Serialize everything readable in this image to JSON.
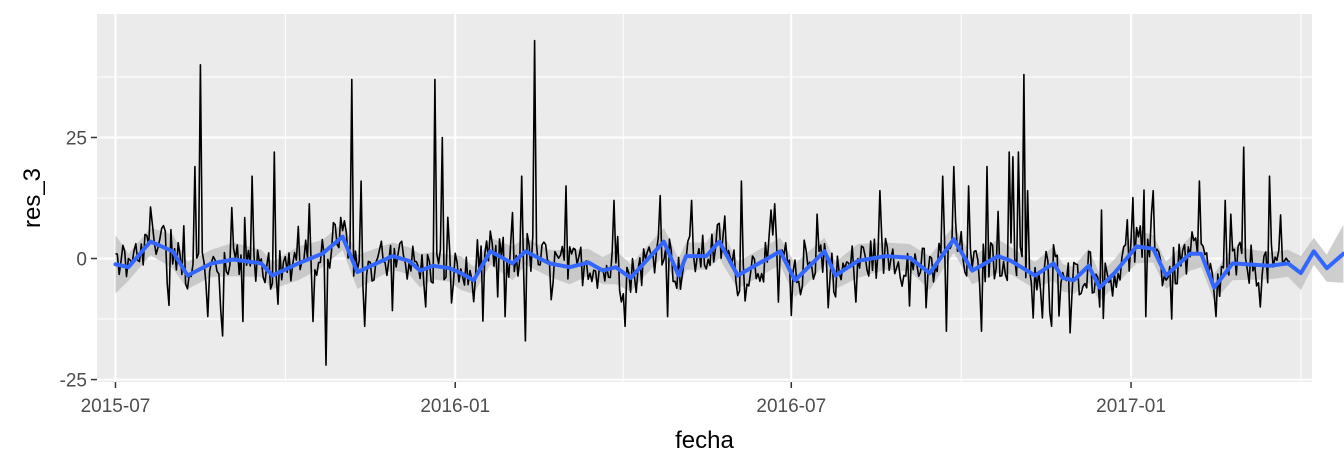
{
  "chart_data": {
    "type": "line",
    "xlabel": "fecha",
    "ylabel": "res_3",
    "x_range": [
      "2015-06-21",
      "2017-04-09"
    ],
    "ylim": [
      -25.5,
      50.5
    ],
    "x_ticks": [
      {
        "date": "2015-07-01",
        "label": "2015-07"
      },
      {
        "date": "2016-01-01",
        "label": "2016-01"
      },
      {
        "date": "2016-07-01",
        "label": "2016-07"
      },
      {
        "date": "2017-01-01",
        "label": "2017-01"
      }
    ],
    "y_ticks": [
      {
        "value": -25,
        "label": "-25"
      },
      {
        "value": 0,
        "label": "0"
      },
      {
        "value": 25,
        "label": "25"
      }
    ],
    "grid": true,
    "background_color": "#ebebeb",
    "residual_color": "#000000",
    "smooth_color": "#3366ff",
    "ribbon_color": "#bdbdbd",
    "series": [
      {
        "type": "line",
        "x_start": "2015-07-01",
        "x_end": "2017-03-28",
        "spikes": [
          {
            "date": "2015-08-16",
            "value": 40
          },
          {
            "date": "2015-08-13",
            "value": 19
          },
          {
            "date": "2015-08-20",
            "value": -12
          },
          {
            "date": "2015-08-28",
            "value": -16
          },
          {
            "date": "2015-09-13",
            "value": 17
          },
          {
            "date": "2015-09-25",
            "value": 22
          },
          {
            "date": "2015-09-08",
            "value": -13
          },
          {
            "date": "2015-10-23",
            "value": -22
          },
          {
            "date": "2015-10-16",
            "value": -13
          },
          {
            "date": "2015-11-06",
            "value": 37
          },
          {
            "date": "2015-11-11",
            "value": 16
          },
          {
            "date": "2015-11-13",
            "value": -14
          },
          {
            "date": "2015-12-21",
            "value": 37
          },
          {
            "date": "2015-12-25",
            "value": 25
          },
          {
            "date": "2015-12-16",
            "value": -10
          },
          {
            "date": "2016-02-13",
            "value": 45
          },
          {
            "date": "2016-02-08",
            "value": -17
          },
          {
            "date": "2016-02-06",
            "value": 17
          },
          {
            "date": "2016-01-28",
            "value": -12
          },
          {
            "date": "2016-03-01",
            "value": 15
          },
          {
            "date": "2016-03-27",
            "value": 12
          },
          {
            "date": "2016-04-02",
            "value": -14
          },
          {
            "date": "2016-04-21",
            "value": 13
          },
          {
            "date": "2016-04-25",
            "value": -12
          },
          {
            "date": "2016-05-08",
            "value": 12
          },
          {
            "date": "2016-06-04",
            "value": 16
          },
          {
            "date": "2016-06-20",
            "value": 10
          },
          {
            "date": "2016-06-24",
            "value": -9
          },
          {
            "date": "2016-08-18",
            "value": 14
          },
          {
            "date": "2016-09-21",
            "value": 17
          },
          {
            "date": "2016-09-27",
            "value": 19
          },
          {
            "date": "2016-09-23",
            "value": -15
          },
          {
            "date": "2016-10-05",
            "value": 15
          },
          {
            "date": "2016-10-15",
            "value": 19
          },
          {
            "date": "2016-10-12",
            "value": -15
          },
          {
            "date": "2016-10-27",
            "value": 22
          },
          {
            "date": "2016-10-29",
            "value": 21
          },
          {
            "date": "2016-11-01",
            "value": 22
          },
          {
            "date": "2016-11-04",
            "value": 38
          },
          {
            "date": "2016-11-06",
            "value": 14
          },
          {
            "date": "2016-11-19",
            "value": -14
          },
          {
            "date": "2016-12-16",
            "value": 10
          },
          {
            "date": "2017-01-13",
            "value": 14
          },
          {
            "date": "2017-01-09",
            "value": -12
          },
          {
            "date": "2017-02-07",
            "value": 16
          },
          {
            "date": "2017-02-16",
            "value": -12
          },
          {
            "date": "2017-02-21",
            "value": 12
          },
          {
            "date": "2017-03-03",
            "value": 23
          },
          {
            "date": "2017-03-17",
            "value": 17
          },
          {
            "date": "2017-03-12",
            "value": -10
          }
        ]
      },
      {
        "type": "smooth",
        "ribbon": [
          [
            -7,
            5
          ],
          [
            -3,
            8
          ],
          [
            -2,
            10
          ]
        ],
        "points": [
          {
            "date": "2015-07-01",
            "value": -1.2
          },
          {
            "date": "2015-07-08",
            "value": -1.8
          },
          {
            "date": "2015-07-20",
            "value": 3.5
          },
          {
            "date": "2015-08-01",
            "value": 1.5
          },
          {
            "date": "2015-08-09",
            "value": -3.5
          },
          {
            "date": "2015-08-22",
            "value": -1
          },
          {
            "date": "2015-09-03",
            "value": -0.2
          },
          {
            "date": "2015-09-18",
            "value": -1
          },
          {
            "date": "2015-09-24",
            "value": -3.5
          },
          {
            "date": "2015-10-08",
            "value": -1
          },
          {
            "date": "2015-10-21",
            "value": 1
          },
          {
            "date": "2015-11-01",
            "value": 4.5
          },
          {
            "date": "2015-11-09",
            "value": -2.8
          },
          {
            "date": "2015-11-28",
            "value": 0.5
          },
          {
            "date": "2015-12-07",
            "value": -0.5
          },
          {
            "date": "2015-12-13",
            "value": -2.5
          },
          {
            "date": "2015-12-20",
            "value": -1.5
          },
          {
            "date": "2015-12-29",
            "value": -2
          },
          {
            "date": "2016-01-04",
            "value": -3
          },
          {
            "date": "2016-01-11",
            "value": -4.5
          },
          {
            "date": "2016-01-20",
            "value": 1.5
          },
          {
            "date": "2016-02-01",
            "value": -1
          },
          {
            "date": "2016-02-08",
            "value": 1.5
          },
          {
            "date": "2016-02-21",
            "value": -1
          },
          {
            "date": "2016-03-03",
            "value": -1.8
          },
          {
            "date": "2016-03-13",
            "value": -0.8
          },
          {
            "date": "2016-03-21",
            "value": -2.5
          },
          {
            "date": "2016-03-28",
            "value": -1.8
          },
          {
            "date": "2016-04-05",
            "value": -4
          },
          {
            "date": "2016-04-23",
            "value": 3.5
          },
          {
            "date": "2016-05-01",
            "value": -3.5
          },
          {
            "date": "2016-05-05",
            "value": 0.5
          },
          {
            "date": "2016-05-16",
            "value": 0.5
          },
          {
            "date": "2016-05-23",
            "value": 3.5
          },
          {
            "date": "2016-06-02",
            "value": -3.5
          },
          {
            "date": "2016-06-25",
            "value": 1.5
          },
          {
            "date": "2016-07-03",
            "value": -4.5
          },
          {
            "date": "2016-07-19",
            "value": 1.5
          },
          {
            "date": "2016-07-25",
            "value": -3.5
          },
          {
            "date": "2016-08-06",
            "value": -0.5
          },
          {
            "date": "2016-08-21",
            "value": 0.5
          },
          {
            "date": "2016-09-03",
            "value": 0.2
          },
          {
            "date": "2016-09-14",
            "value": -3
          },
          {
            "date": "2016-09-27",
            "value": 4
          },
          {
            "date": "2016-10-07",
            "value": -2.5
          },
          {
            "date": "2016-10-21",
            "value": 0.5
          },
          {
            "date": "2016-10-28",
            "value": -0.5
          },
          {
            "date": "2016-11-10",
            "value": -3.5
          },
          {
            "date": "2016-11-20",
            "value": -1
          },
          {
            "date": "2016-11-25",
            "value": -4
          },
          {
            "date": "2016-12-01",
            "value": -4.5
          },
          {
            "date": "2016-12-09",
            "value": -1.5
          },
          {
            "date": "2016-12-15",
            "value": -6
          },
          {
            "date": "2016-12-23",
            "value": -3
          },
          {
            "date": "2017-01-04",
            "value": 2.5
          },
          {
            "date": "2017-01-13",
            "value": 2
          },
          {
            "date": "2017-01-20",
            "value": -3.5
          },
          {
            "date": "2017-02-02",
            "value": 1
          },
          {
            "date": "2017-02-08",
            "value": 1
          },
          {
            "date": "2017-02-15",
            "value": -6
          },
          {
            "date": "2017-02-25",
            "value": -1
          },
          {
            "date": "2017-03-17",
            "value": -1.5
          },
          {
            "date": "2017-03-27",
            "value": -1
          },
          {
            "date": "2017-04-03",
            "value": -3
          },
          {
            "date": "2017-04-10",
            "value": 1.5
          },
          {
            "date": "2017-04-17",
            "value": -2
          },
          {
            "date": "2017-04-26",
            "value": 1
          }
        ]
      }
    ]
  }
}
